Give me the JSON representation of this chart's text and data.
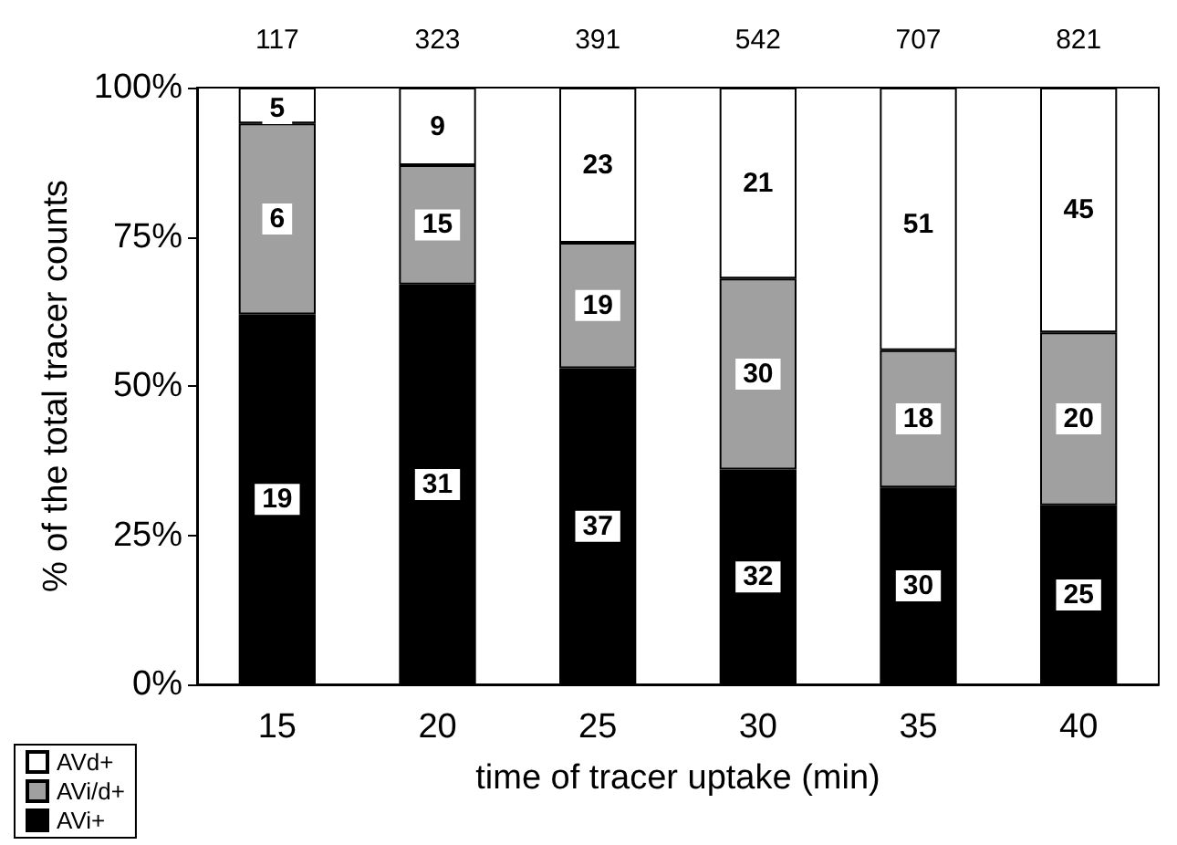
{
  "chart_data": {
    "type": "bar",
    "stacked": true,
    "xlabel": "time of tracer uptake (min)",
    "ylabel": "% of the total tracer counts",
    "categories": [
      "15",
      "20",
      "25",
      "30",
      "35",
      "40"
    ],
    "series": [
      {
        "name": "AVi+",
        "color": "#000000",
        "values": [
          62,
          67,
          53,
          36,
          33,
          30
        ]
      },
      {
        "name": "AVi/d+",
        "color": "#a0a0a0",
        "values": [
          32,
          20,
          21,
          32,
          23,
          29
        ]
      },
      {
        "name": "AVd+",
        "color": "#ffffff",
        "values": [
          6,
          13,
          26,
          32,
          44,
          41
        ]
      }
    ],
    "annotations": [
      {
        "text": "19",
        "x": "15",
        "y": 31
      },
      {
        "text": "31",
        "x": "20",
        "y": 33.5
      },
      {
        "text": "37",
        "x": "25",
        "y": 26.5
      },
      {
        "text": "32",
        "x": "30",
        "y": 18
      },
      {
        "text": "30",
        "x": "35",
        "y": 16.5
      },
      {
        "text": "25",
        "x": "40",
        "y": 15
      },
      {
        "text": "6",
        "x": "15",
        "y": 78
      },
      {
        "text": "15",
        "x": "20",
        "y": 77
      },
      {
        "text": "19",
        "x": "25",
        "y": 63.5
      },
      {
        "text": "30",
        "x": "30",
        "y": 52
      },
      {
        "text": "18",
        "x": "35",
        "y": 44.5
      },
      {
        "text": "20",
        "x": "40",
        "y": 44.5
      },
      {
        "text": "5",
        "x": "15",
        "y": 96.5
      },
      {
        "text": "9",
        "x": "20",
        "y": 93.5
      },
      {
        "text": "23",
        "x": "25",
        "y": 87
      },
      {
        "text": "21",
        "x": "30",
        "y": 84
      },
      {
        "text": "51",
        "x": "35",
        "y": 77
      },
      {
        "text": "45",
        "x": "40",
        "y": 79.5
      },
      "117",
      "323",
      "391",
      "542",
      "707",
      "821"
    ],
    "ylim": [
      0,
      100
    ],
    "yticks": [
      {
        "value": 0,
        "label": "0%"
      },
      {
        "value": 25,
        "label": "25%"
      },
      {
        "value": 50,
        "label": "50%"
      },
      {
        "value": 75,
        "label": "75%"
      },
      {
        "value": 100,
        "label": "100%"
      }
    ],
    "grid": false,
    "legend": "bottom left"
  }
}
